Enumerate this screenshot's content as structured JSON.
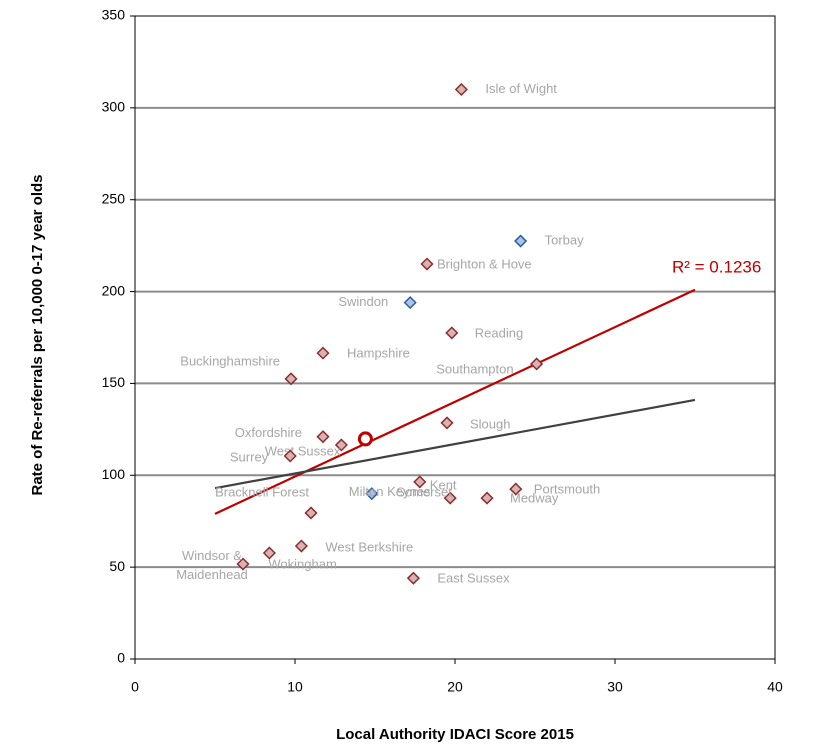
{
  "chart_data": {
    "type": "scatter",
    "x_label": "Local Authority IDACI Score 2015",
    "y_label": "Rate of Re-referrals per 10,000 0-17 year olds",
    "labels": [
      "Isle of Wight",
      "Torbay",
      "Brighton & Hove",
      "Swindon",
      "Reading",
      "Hampshire",
      "Buckinghamshire",
      "Southampton",
      "Slough",
      "Oxfordshire",
      "West Sussex",
      "Surrey",
      "Kent",
      "Milton Keynes",
      "Somerset",
      "Medway",
      "Portsmouth",
      "Bracknell Forest",
      "West Berkshire",
      "Wokingham",
      "Windsor & Maidenhead",
      "East Sussex"
    ],
    "x": [
      20.4,
      24.1,
      18.25,
      17.2,
      19.8,
      11.75,
      9.75,
      25.1,
      19.5,
      11.75,
      12.9,
      9.7,
      17.8,
      14.8,
      19.7,
      22,
      23.8,
      11,
      10.4,
      8.4,
      6.75,
      17.4
    ],
    "values": [
      310,
      227.5,
      215,
      194,
      177.5,
      166.5,
      152.5,
      160.6,
      128.5,
      121,
      116.5,
      110.5,
      96.4,
      90,
      87.6,
      87.6,
      92.5,
      79.5,
      61.5,
      57.7,
      51.7,
      44
    ],
    "colors": [
      "#d9b3b3",
      "#a9c4e8",
      "#d9b3b3",
      "#a9c4e8",
      "#d9b3b3",
      "#d9b3b3",
      "#d9b3b3",
      "#d9b3b3",
      "#d9b3b3",
      "#d9b3b3",
      "#d9b3b3",
      "#d9b3b3",
      "#d9b3b3",
      "#a9c4e8",
      "#d9b3b3",
      "#d9b3b3",
      "#d9b3b3",
      "#d9b3b3",
      "#d9b3b3",
      "#d9b3b3",
      "#d9b3b3",
      "#d9b3b3"
    ],
    "mean_point": {
      "x": 14.4,
      "y": 119.8,
      "color": "#c00000"
    },
    "trendlines": [
      {
        "color": "#c00000",
        "x": [
          5,
          35
        ],
        "y": [
          79,
          201
        ]
      },
      {
        "color": "#404040",
        "x": [
          5,
          35
        ],
        "y": [
          93,
          141
        ]
      }
    ],
    "annotation": "R² = 0.1236",
    "xlim": [
      0,
      40
    ],
    "xticks": [
      0,
      10,
      20,
      30,
      40
    ],
    "ylim": [
      0,
      350
    ],
    "yticks": [
      0,
      50,
      100,
      150,
      200,
      250,
      300,
      350
    ],
    "grid": true
  }
}
